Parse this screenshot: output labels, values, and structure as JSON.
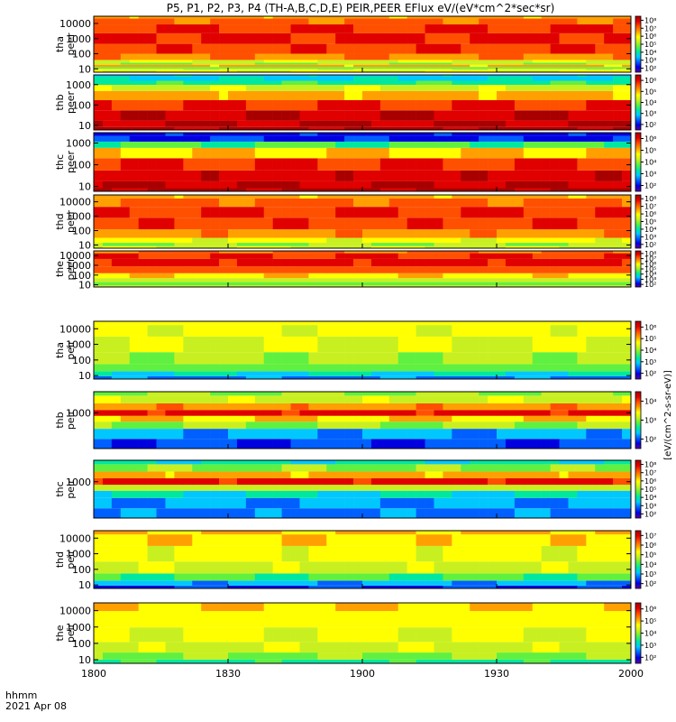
{
  "title": "P5, P1, P2, P3, P4 (TH-A,B,C,D,E) PEIR,PEER EFlux eV/(eV*cm^2*sec*sr)",
  "time_axis": {
    "label_line1": "hhmm",
    "label_line2": "2021 Apr 08",
    "range": [
      "1800",
      "2000"
    ],
    "ticks": [
      "1800",
      "1830",
      "1900",
      "1930",
      "2000"
    ]
  },
  "colorbar_unit_label": "[eV/(cm^2-s-sr-eV)]",
  "palette": [
    "#5b00a0",
    "#0000e0",
    "#0060ff",
    "#00c8ff",
    "#00e8a0",
    "#60f040",
    "#c8f020",
    "#ffff00",
    "#ffa000",
    "#ff5000",
    "#e00000",
    "#a80000"
  ],
  "chart_data": [
    {
      "type": "heatmap",
      "panel": "tha-peer",
      "ylabel": [
        "tha",
        "peer"
      ],
      "yscale": "log",
      "yticks": [
        "10",
        "100",
        "1000",
        "10000"
      ],
      "colorbar_ticks": [
        "10^2",
        "10^3",
        "10^4",
        "10^5",
        "10^6",
        "10^7",
        "10^8"
      ],
      "energy_profile": [
        {
          "energy": 7,
          "level": 0.6
        },
        {
          "energy": 9,
          "level": 0.62
        },
        {
          "energy": 11,
          "level": 0.45
        },
        {
          "energy": 16,
          "level": 0.72
        },
        {
          "energy": 22,
          "level": 0.5
        },
        {
          "energy": 30,
          "level": 0.58
        },
        {
          "energy": 50,
          "level": 0.75
        },
        {
          "energy": 200,
          "level": 0.84
        },
        {
          "energy": 1000,
          "level": 0.88
        },
        {
          "energy": 5000,
          "level": 0.86
        },
        {
          "energy": 15000,
          "level": 0.8
        },
        {
          "energy": 30000,
          "level": 0.72
        }
      ]
    },
    {
      "type": "heatmap",
      "panel": "thb-peer",
      "ylabel": [
        "thb",
        "peer"
      ],
      "yscale": "log",
      "yticks": [
        "10",
        "100",
        "1000"
      ],
      "colorbar_ticks": [
        "10^2",
        "10^3",
        "10^4",
        "10^5",
        "10^6"
      ],
      "energy_profile": [
        {
          "energy": 7,
          "level": 0.98
        },
        {
          "energy": 10,
          "level": 0.96
        },
        {
          "energy": 30,
          "level": 0.94
        },
        {
          "energy": 100,
          "level": 0.86
        },
        {
          "energy": 300,
          "level": 0.72
        },
        {
          "energy": 800,
          "level": 0.56
        },
        {
          "energy": 1200,
          "level": 0.38
        },
        {
          "energy": 2000,
          "level": 0.3
        },
        {
          "energy": 3000,
          "level": 0.28
        }
      ]
    },
    {
      "type": "heatmap",
      "panel": "thc-peer",
      "ylabel": [
        "thc",
        "peer"
      ],
      "yscale": "log",
      "yticks": [
        "10",
        "100",
        "1000"
      ],
      "colorbar_ticks": [
        "10^2",
        "10^3",
        "10^4",
        "10^5",
        "10^6"
      ],
      "energy_profile": [
        {
          "energy": 7,
          "level": 0.98
        },
        {
          "energy": 10,
          "level": 0.95
        },
        {
          "energy": 30,
          "level": 0.92
        },
        {
          "energy": 100,
          "level": 0.86
        },
        {
          "energy": 400,
          "level": 0.68
        },
        {
          "energy": 900,
          "level": 0.42
        },
        {
          "energy": 1500,
          "level": 0.12
        },
        {
          "energy": 3000,
          "level": 0.1
        }
      ]
    },
    {
      "type": "heatmap",
      "panel": "thd-peer",
      "ylabel": [
        "thd",
        "peer"
      ],
      "yscale": "log",
      "yticks": [
        "10",
        "100",
        "1000",
        "10000"
      ],
      "colorbar_ticks": [
        "10^2",
        "10^3",
        "10^4",
        "10^5",
        "10^6",
        "10^7",
        "10^8"
      ],
      "energy_profile": [
        {
          "energy": 7,
          "level": 0.58
        },
        {
          "energy": 10,
          "level": 0.5
        },
        {
          "energy": 20,
          "level": 0.62
        },
        {
          "energy": 50,
          "level": 0.74
        },
        {
          "energy": 300,
          "level": 0.84
        },
        {
          "energy": 2000,
          "level": 0.86
        },
        {
          "energy": 10000,
          "level": 0.8
        },
        {
          "energy": 30000,
          "level": 0.72
        }
      ]
    },
    {
      "type": "heatmap",
      "panel": "the-peer",
      "ylabel": [
        "the",
        "peer"
      ],
      "yscale": "log",
      "yticks": [
        "10",
        "100",
        "1000",
        "10000"
      ],
      "colorbar_ticks": [
        "10^2",
        "10^3",
        "10^4",
        "10^5",
        "10^6",
        "10^7",
        "10^8"
      ],
      "energy_profile": [
        {
          "energy": 7,
          "level": 0.55
        },
        {
          "energy": 12,
          "level": 0.46
        },
        {
          "energy": 30,
          "level": 0.55
        },
        {
          "energy": 80,
          "level": 0.66
        },
        {
          "energy": 300,
          "level": 0.82
        },
        {
          "energy": 2000,
          "level": 0.9
        },
        {
          "energy": 10000,
          "level": 0.86
        },
        {
          "energy": 30000,
          "level": 0.78
        }
      ]
    },
    {
      "type": "heatmap",
      "panel": "tha-peir",
      "ylabel": [
        "tha",
        "peir"
      ],
      "yscale": "log",
      "yticks": [
        "10",
        "100",
        "1000",
        "10000"
      ],
      "colorbar_ticks": [
        "10^2",
        "10^3",
        "10^4",
        "10^5",
        "10^6"
      ],
      "energy_profile": [
        {
          "energy": 7,
          "level": 0.2
        },
        {
          "energy": 12,
          "level": 0.32
        },
        {
          "energy": 30,
          "level": 0.46
        },
        {
          "energy": 100,
          "level": 0.52
        },
        {
          "energy": 1000,
          "level": 0.58
        },
        {
          "energy": 10000,
          "level": 0.62
        },
        {
          "energy": 30000,
          "level": 0.64
        }
      ]
    },
    {
      "type": "heatmap",
      "panel": "thb-peir",
      "ylabel": [
        "thb",
        "peir"
      ],
      "yscale": "log",
      "yticks": [
        "1000"
      ],
      "colorbar_ticks": [
        "10^2",
        "10^3",
        "10^4"
      ],
      "energy_profile": [
        {
          "energy": 150,
          "level": 0.15
        },
        {
          "energy": 300,
          "level": 0.25
        },
        {
          "energy": 500,
          "level": 0.5
        },
        {
          "energy": 700,
          "level": 0.68
        },
        {
          "energy": 1000,
          "level": 0.9
        },
        {
          "energy": 1400,
          "level": 0.74
        },
        {
          "energy": 2200,
          "level": 0.56
        },
        {
          "energy": 3500,
          "level": 0.5
        }
      ]
    },
    {
      "type": "heatmap",
      "panel": "thc-peir",
      "ylabel": [
        "thc",
        "peir"
      ],
      "yscale": "log",
      "yticks": [
        "1000"
      ],
      "colorbar_ticks": [
        "10^2",
        "10^3",
        "10^4",
        "10^5",
        "10^6",
        "10^7",
        "10^8"
      ],
      "energy_profile": [
        {
          "energy": 150,
          "level": 0.2
        },
        {
          "energy": 300,
          "level": 0.24
        },
        {
          "energy": 500,
          "level": 0.32
        },
        {
          "energy": 700,
          "level": 0.55
        },
        {
          "energy": 1000,
          "level": 0.9
        },
        {
          "energy": 1500,
          "level": 0.72
        },
        {
          "energy": 2200,
          "level": 0.48
        },
        {
          "energy": 3500,
          "level": 0.34
        }
      ]
    },
    {
      "type": "heatmap",
      "panel": "thd-peir",
      "ylabel": [
        "thd",
        "peir"
      ],
      "yscale": "log",
      "yticks": [
        "10",
        "100",
        "1000",
        "10000"
      ],
      "colorbar_ticks": [
        "10^2",
        "10^3",
        "10^4",
        "10^5",
        "10^6",
        "10^7"
      ],
      "energy_profile": [
        {
          "energy": 7,
          "level": 0.12
        },
        {
          "energy": 12,
          "level": 0.25
        },
        {
          "energy": 30,
          "level": 0.42
        },
        {
          "energy": 100,
          "level": 0.56
        },
        {
          "energy": 1000,
          "level": 0.62
        },
        {
          "energy": 10000,
          "level": 0.66
        },
        {
          "energy": 30000,
          "level": 0.7
        }
      ]
    },
    {
      "type": "heatmap",
      "panel": "the-peir",
      "ylabel": [
        "the",
        "peir"
      ],
      "yscale": "log",
      "yticks": [
        "10",
        "100",
        "1000",
        "10000"
      ],
      "colorbar_ticks": [
        "10^2",
        "10^3",
        "10^4",
        "10^5",
        "10^6"
      ],
      "energy_profile": [
        {
          "energy": 7,
          "level": 0.38
        },
        {
          "energy": 15,
          "level": 0.48
        },
        {
          "energy": 50,
          "level": 0.56
        },
        {
          "energy": 300,
          "level": 0.6
        },
        {
          "energy": 3000,
          "level": 0.64
        },
        {
          "energy": 30000,
          "level": 0.68
        }
      ]
    }
  ]
}
